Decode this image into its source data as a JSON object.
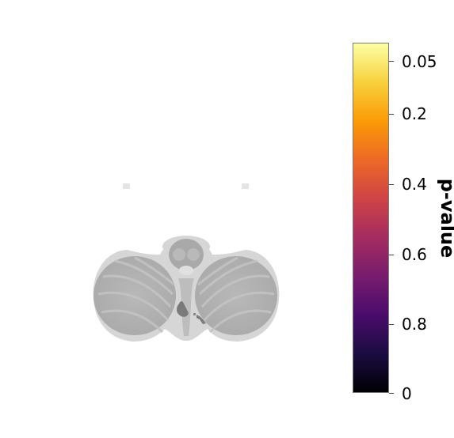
{
  "colorbar": {
    "label": "p-value",
    "colormap": "inferno",
    "ticks": [
      "0.05",
      "0.2",
      "0.4",
      "0.6",
      "0.8",
      "0"
    ],
    "colors": [
      "#000004",
      "#1b0c41",
      "#4a0c6b",
      "#781c6d",
      "#a52c60",
      "#cf4446",
      "#ed6925",
      "#fb9b06",
      "#f7d13d",
      "#fcffa4"
    ]
  },
  "brain": {
    "view": "axial slice of cerebellum",
    "background_color": "#d6d6d6",
    "highlight_color": "#7a7a7a"
  }
}
